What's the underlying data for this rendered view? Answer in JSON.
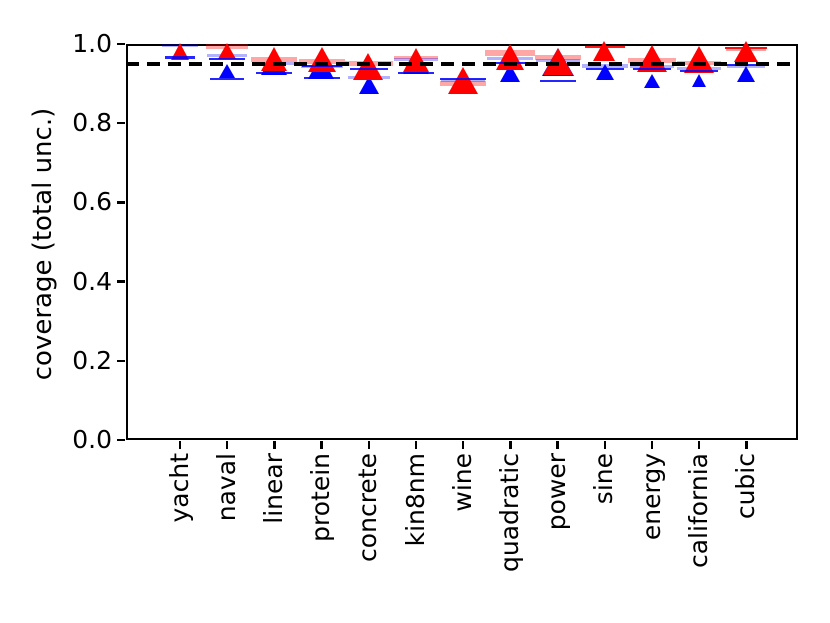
{
  "chart_data": {
    "type": "scatter",
    "title": "",
    "xlabel": "",
    "ylabel": "coverage (total unc.)",
    "categories": [
      "yacht",
      "naval",
      "linear",
      "protein",
      "concrete",
      "kin8nm",
      "wine",
      "quadratic",
      "power",
      "sine",
      "energy",
      "california",
      "cubic"
    ],
    "ylim": [
      0.0,
      1.0
    ],
    "yticks": [
      "0.0",
      "0.2",
      "0.4",
      "0.6",
      "0.8",
      "1.0"
    ],
    "grid": false,
    "legend": "none",
    "reference_line": {
      "value": 0.95,
      "color": "#000000",
      "style": "dashed"
    },
    "series": [
      {
        "name": "red",
        "color": "#ff0000",
        "marker": "triangle_up",
        "values": [
          0.982,
          0.982,
          0.962,
          0.96,
          0.943,
          0.96,
          0.907,
          0.966,
          0.955,
          0.981,
          0.962,
          0.96,
          0.98
        ],
        "marker_widths": [
          19,
          18,
          27,
          28,
          31,
          27,
          30,
          29,
          30,
          23,
          31,
          31,
          24
        ]
      },
      {
        "name": "blue",
        "color": "#0000ff",
        "marker": "triangle_up",
        "values": [
          0.979,
          0.932,
          0.95,
          0.941,
          0.897,
          0.954,
          0.906,
          0.926,
          0.953,
          0.93,
          0.907,
          0.908,
          0.923
        ],
        "marker_widths": [
          17,
          16,
          26,
          27,
          20,
          27,
          25,
          20,
          32,
          18,
          16,
          15,
          18
        ]
      }
    ],
    "error_lines": [
      [
        [
          "B",
          0.996,
          36,
          3
        ],
        [
          "b",
          0.966,
          30,
          2.5
        ]
      ],
      [
        [
          "R",
          0.993,
          42,
          5
        ],
        [
          "B",
          0.97,
          40,
          3
        ],
        [
          "b",
          0.961,
          36,
          2
        ],
        [
          "b",
          0.912,
          34,
          2
        ]
      ],
      [
        [
          "R",
          0.961,
          46,
          5
        ],
        [
          "B",
          0.95,
          42,
          3
        ],
        [
          "b",
          0.928,
          36,
          2
        ]
      ],
      [
        [
          "R",
          0.956,
          46,
          5
        ],
        [
          "B",
          0.942,
          42,
          3
        ],
        [
          "b",
          0.945,
          40,
          2
        ],
        [
          "b",
          0.913,
          36,
          2
        ]
      ],
      [
        [
          "R",
          0.95,
          48,
          5
        ],
        [
          "B",
          0.916,
          42,
          3
        ],
        [
          "b",
          0.937,
          38,
          2
        ]
      ],
      [
        [
          "R",
          0.966,
          44,
          3.5
        ],
        [
          "B",
          0.96,
          44,
          3
        ],
        [
          "b",
          0.928,
          36,
          2
        ]
      ],
      [
        [
          "R",
          0.901,
          46,
          5
        ],
        [
          "B",
          0.909,
          44,
          3
        ],
        [
          "b",
          0.911,
          46,
          2.5
        ]
      ],
      [
        [
          "R",
          0.978,
          50,
          6
        ],
        [
          "B",
          0.964,
          46,
          3.5
        ],
        [
          "b",
          0.952,
          40,
          2
        ]
      ],
      [
        [
          "R",
          0.966,
          46,
          5
        ],
        [
          "B",
          0.958,
          44,
          3.5
        ],
        [
          "b",
          0.906,
          36,
          2
        ]
      ],
      [
        [
          "r",
          0.992,
          40,
          2.5
        ],
        [
          "B",
          0.944,
          46,
          3.5
        ],
        [
          "b",
          0.938,
          38,
          2
        ]
      ],
      [
        [
          "R",
          0.958,
          48,
          5
        ],
        [
          "B",
          0.942,
          44,
          3
        ],
        [
          "b",
          0.936,
          38,
          2
        ]
      ],
      [
        [
          "R",
          0.951,
          44,
          4
        ],
        [
          "B",
          0.938,
          44,
          3
        ],
        [
          "b",
          0.933,
          38,
          2
        ]
      ],
      [
        [
          "r",
          0.99,
          42,
          2.5
        ],
        [
          "R",
          0.987,
          40,
          4
        ],
        [
          "b",
          0.947,
          40,
          2
        ],
        [
          "B",
          0.944,
          38,
          3
        ]
      ]
    ],
    "error_colors": {
      "R": "rgba(255,0,0,0.35)",
      "B": "rgba(0,0,255,0.30)",
      "r": "rgba(255,0,0,0.90)",
      "b": "rgba(0,0,255,0.85)"
    }
  }
}
